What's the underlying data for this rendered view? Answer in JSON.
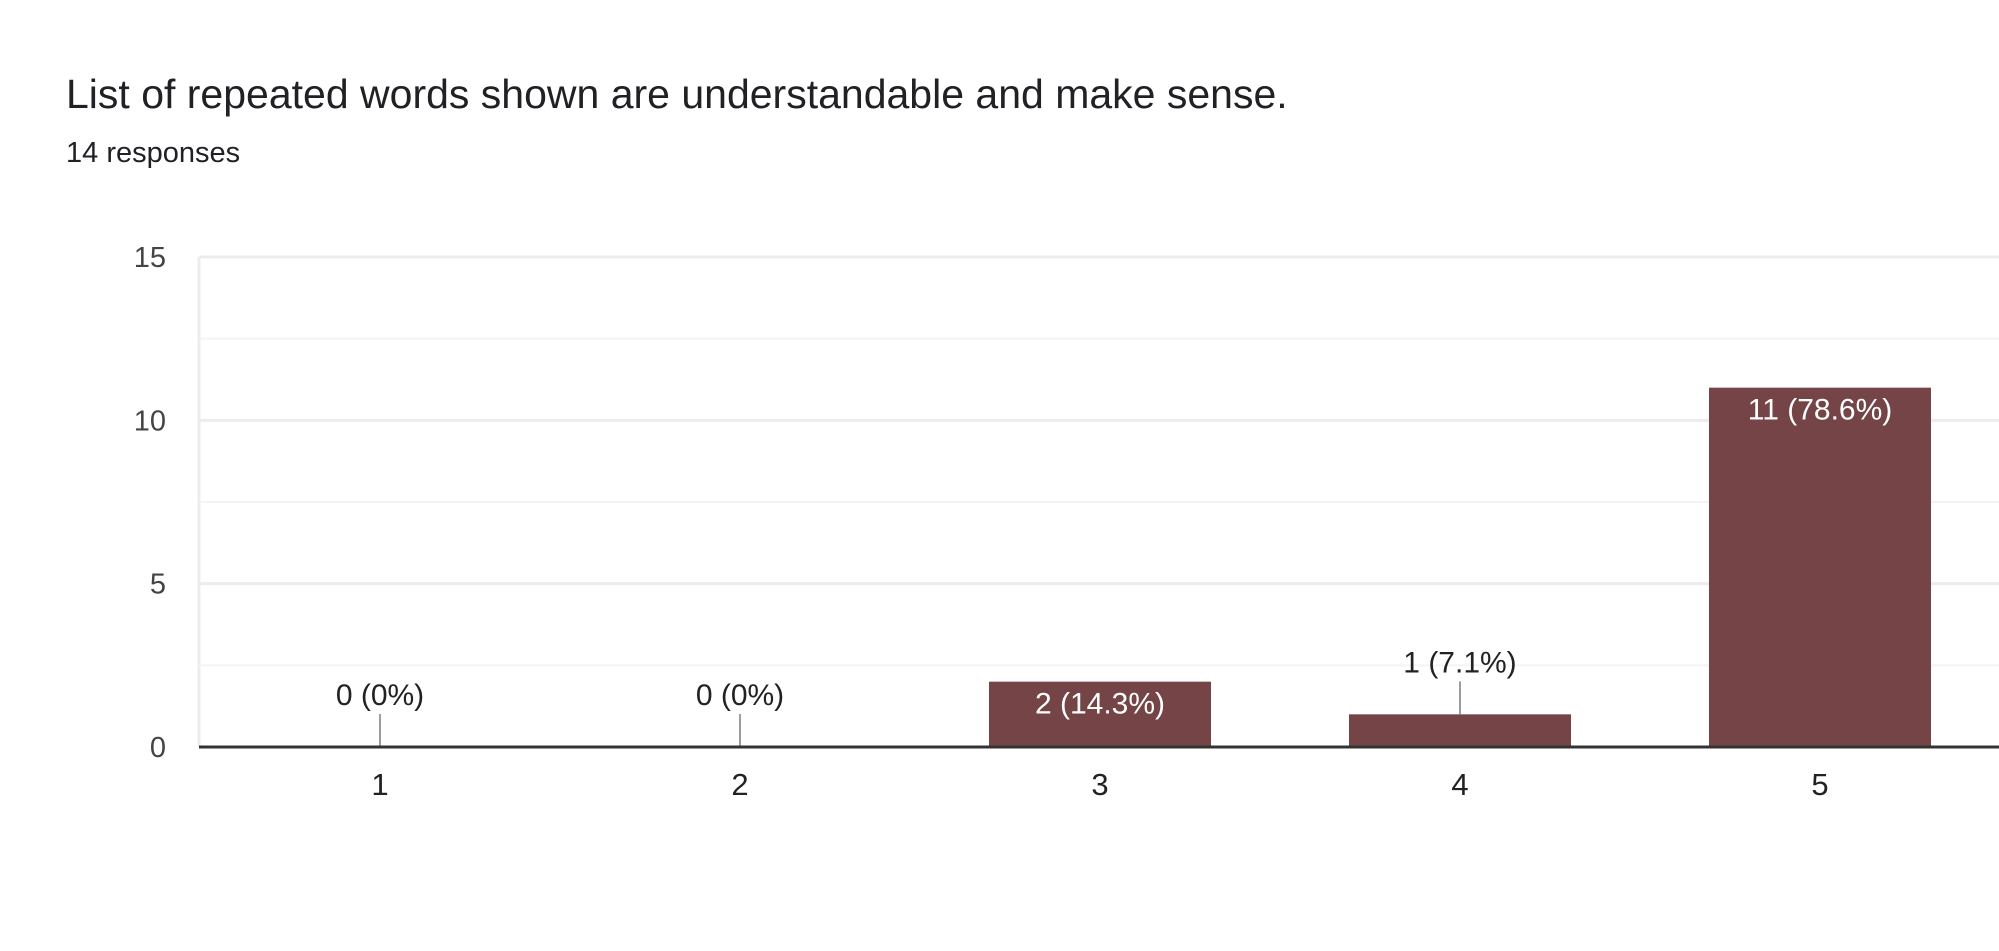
{
  "header": {
    "title": "List of repeated words shown are understandable and make sense.",
    "responses": "14 responses"
  },
  "colors": {
    "bar": "#744446",
    "grid": "#ececec",
    "minor_grid": "#f4f4f4",
    "axis": "#333333",
    "leader": "#9e9e9e",
    "label_inside": "#ffffff",
    "label_outside": "#222222"
  },
  "chart_data": {
    "type": "bar",
    "title": "List of repeated words shown are understandable and make sense.",
    "subtitle": "14 responses",
    "categories": [
      "1",
      "2",
      "3",
      "4",
      "5"
    ],
    "values": [
      0,
      0,
      2,
      1,
      11
    ],
    "data_labels": [
      "0 (0%)",
      "0 (0%)",
      "2 (14.3%)",
      "1 (7.1%)",
      "11 (78.6%)"
    ],
    "ylim": [
      0,
      15
    ],
    "yticks": [
      "0",
      "5",
      "10",
      "15"
    ],
    "xlabel": "",
    "ylabel": "",
    "grid": true,
    "legend": "none"
  }
}
